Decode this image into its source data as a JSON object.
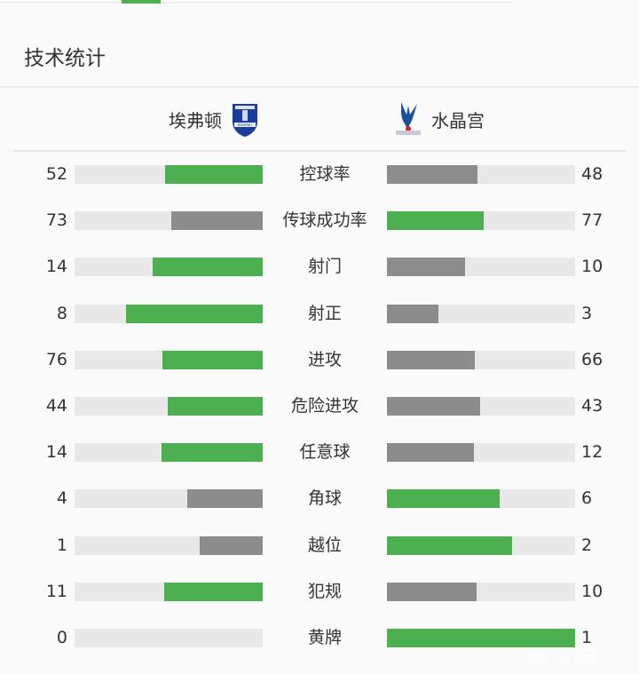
{
  "header": {
    "title": "技术统计"
  },
  "teams": {
    "home": {
      "name": "埃弗顿",
      "crest": "everton-crest-icon"
    },
    "away": {
      "name": "水晶宫",
      "crest": "crystal-palace-crest-icon"
    }
  },
  "colors": {
    "leader": "#4caf50",
    "trailer": "#8c8c8c",
    "track": "#e8e8e8"
  },
  "stats": [
    {
      "label": "控球率",
      "home": 52,
      "away": 48
    },
    {
      "label": "传球成功率",
      "home": 73,
      "away": 77
    },
    {
      "label": "射门",
      "home": 14,
      "away": 10
    },
    {
      "label": "射正",
      "home": 8,
      "away": 3
    },
    {
      "label": "进攻",
      "home": 76,
      "away": 66
    },
    {
      "label": "危险进攻",
      "home": 44,
      "away": 43
    },
    {
      "label": "任意球",
      "home": 14,
      "away": 12
    },
    {
      "label": "角球",
      "home": 4,
      "away": 6
    },
    {
      "label": "越位",
      "home": 1,
      "away": 2
    },
    {
      "label": "犯规",
      "home": 11,
      "away": 10
    },
    {
      "label": "黄牌",
      "home": 0,
      "away": 1
    }
  ],
  "watermark": "懂球帝"
}
